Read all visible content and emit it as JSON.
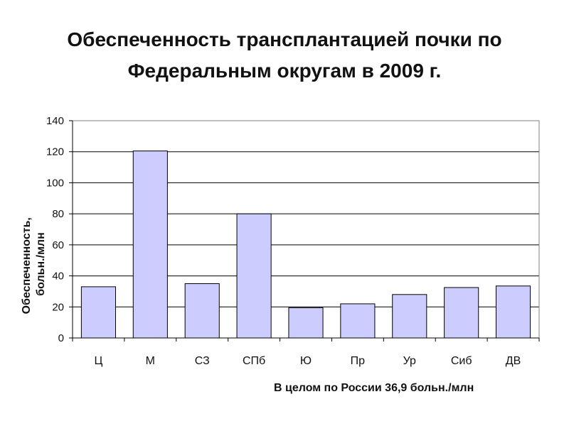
{
  "title_line1": "Обеспеченность трансплантацией почки по",
  "title_line2": "Федеральным округам в 2009 г.",
  "footnote": "В целом по России 36,9 больн./млн",
  "chart_data": {
    "type": "bar",
    "categories": [
      "Ц",
      "М",
      "СЗ",
      "СПб",
      "Ю",
      "Пр",
      "Ур",
      "Сиб",
      "ДВ"
    ],
    "values": [
      33,
      120.5,
      35,
      80,
      19.5,
      22,
      28,
      32.5,
      33.5
    ],
    "ylabel": "Обеспеченность, больн./млн",
    "ylabel_lines": [
      "Обеспеченность,",
      "больн./млн"
    ],
    "ylim": [
      0,
      140
    ],
    "yticks": [
      0,
      20,
      40,
      60,
      80,
      100,
      120,
      140
    ],
    "grid": true,
    "bar_color": "#ccccff",
    "bar_stroke": "#000000"
  }
}
